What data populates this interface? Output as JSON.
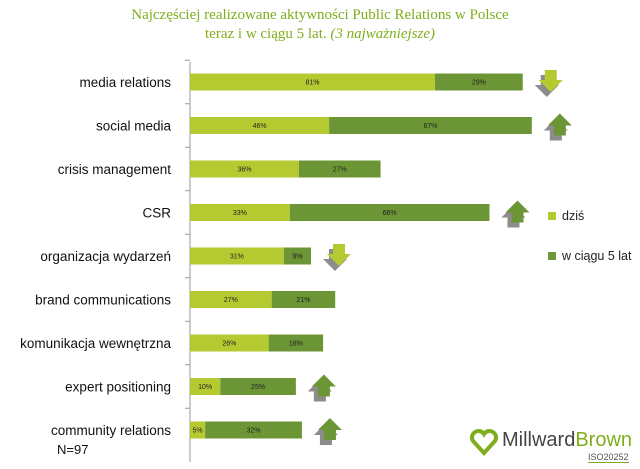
{
  "title_line1": "Najczęściej realizowane aktywności Public Relations w Polsce",
  "title_line2": "teraz i w ciągu 5 lat.",
  "title_line2_italic": "(3 najważniejsze)",
  "chart_data": {
    "type": "bar",
    "orientation": "horizontal-stacked",
    "categories": [
      "media relations",
      "social media",
      "crisis management",
      "CSR",
      "organizacja wydarzeń",
      "brand communications",
      "komunikacja wewnętrzna",
      "expert positioning",
      "community relations"
    ],
    "series": [
      {
        "name": "dziś",
        "color": "#b5c930",
        "values": [
          81,
          46,
          36,
          33,
          31,
          27,
          26,
          10,
          5
        ]
      },
      {
        "name": "w ciągu 5 lat",
        "color": "#6c9535",
        "values": [
          29,
          67,
          27,
          66,
          9,
          21,
          18,
          25,
          32
        ]
      }
    ],
    "trend": [
      "down",
      "up",
      "none",
      "up",
      "down",
      "none",
      "none",
      "up",
      "up"
    ],
    "value_suffix": "%"
  },
  "legend": [
    {
      "label": "dziś",
      "color": "#b5c930"
    },
    {
      "label": "w ciągu 5 lat",
      "color": "#6c9535"
    }
  ],
  "sample_size": "N=97",
  "logo": {
    "brand_a": "Millward",
    "brand_b": "Brown",
    "iso": "ISO20252"
  }
}
